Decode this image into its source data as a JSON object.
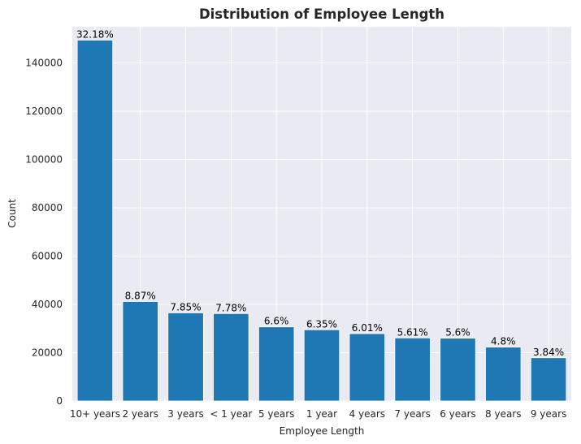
{
  "chart_data": {
    "type": "bar",
    "title": "Distribution of Employee Length",
    "xlabel": "Employee Length",
    "ylabel": "Count",
    "categories": [
      "10+ years",
      "2 years",
      "3 years",
      "< 1 year",
      "5 years",
      "1 year",
      "4 years",
      "7 years",
      "6 years",
      "8 years",
      "9 years"
    ],
    "values": [
      149500,
      41200,
      36500,
      36200,
      30700,
      29500,
      27900,
      26100,
      26000,
      22300,
      17900
    ],
    "data_labels": [
      "32.18%",
      "8.87%",
      "7.85%",
      "7.78%",
      "6.6%",
      "6.35%",
      "6.01%",
      "5.61%",
      "5.6%",
      "4.8%",
      "3.84%"
    ],
    "ylim": [
      0,
      155000
    ],
    "yticks": [
      0,
      20000,
      40000,
      60000,
      80000,
      100000,
      120000,
      140000
    ],
    "ytick_labels": [
      "0",
      "20000",
      "40000",
      "60000",
      "80000",
      "100000",
      "120000",
      "140000"
    ],
    "grid": true,
    "colors": {
      "bar": "#1f77b4",
      "background": "#eaeaf2",
      "grid": "#ffffff"
    }
  }
}
